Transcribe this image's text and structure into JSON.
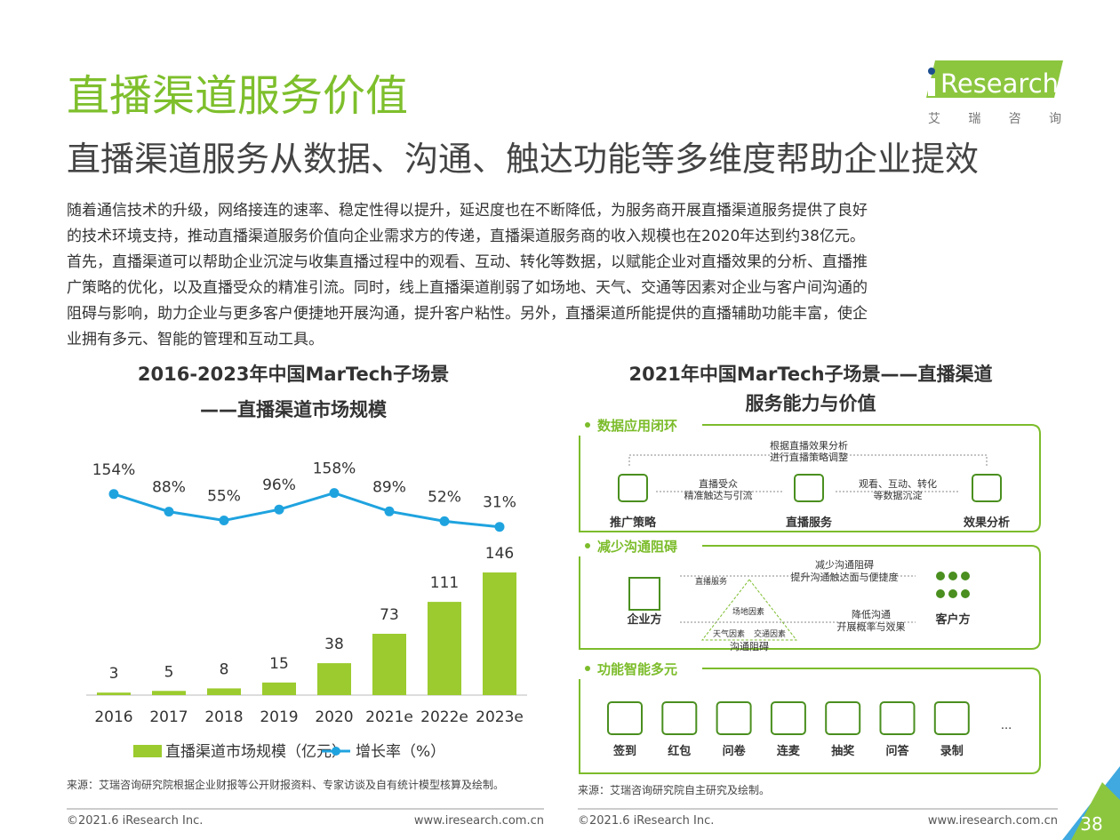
{
  "header": {
    "title": "直播渠道服务价值",
    "subtitle": "直播渠道服务从数据、沟通、触达功能等多维度帮助企业提效",
    "logo": "Research",
    "logo_cn": "艾 瑞 咨 询"
  },
  "body": [
    "随着通信技术的升级，网络接连的速率、稳定性得以提升，延迟度也在不断降低，为服务商开展直播渠道服务提供了良好",
    "的技术环境支持，推动直播渠道服务价值向企业需求方的传递，直播渠道服务商的收入规模也在2020年达到约38亿元。",
    "首先，直播渠道可以帮助企业沉淀与收集直播过程中的观看、互动、转化等数据，以赋能企业对直播效果的分析、直播推",
    "广策略的优化，以及直播受众的精准引流。同时，线上直播渠道削弱了如场地、天气、交通等因素对企业与客户间沟通的",
    "阻碍与影响，助力企业与更多客户便捷地开展沟通，提升客户粘性。另外，直播渠道所能提供的直播辅助功能丰富，使企",
    "业拥有多元、智能的管理和互动工具。"
  ],
  "chart_data": {
    "type": "bar",
    "title": [
      "2016-2023年中国MarTech子场景",
      "——直播渠道市场规模"
    ],
    "categories": [
      "2016",
      "2017",
      "2018",
      "2019",
      "2020",
      "2021e",
      "2022e",
      "2023e"
    ],
    "series": [
      {
        "name": "直播渠道市场规模（亿元）",
        "color": "#9bcb2e",
        "values": [
          3,
          5,
          8,
          15,
          38,
          73,
          111,
          146
        ]
      },
      {
        "name": "增长率（%）",
        "color": "#1fa3df",
        "type": "line",
        "values": [
          154,
          88,
          55,
          96,
          158,
          89,
          52,
          31
        ],
        "value_labels": [
          "154%",
          "88%",
          "55%",
          "96%",
          "158%",
          "89%",
          "52%",
          "31%"
        ]
      }
    ],
    "source": "来源：艾瑞咨询研究院根据企业财报等公开财报资料、专家访谈及自有统计模型核算及绘制。"
  },
  "diagram": {
    "title": [
      "2021年中国MarTech子场景——直播渠道",
      "服务能力与价值"
    ],
    "sections": [
      {
        "label": "数据应用闭环",
        "texts": [
          "推广策略",
          "直播服务",
          "效果分析",
          "根据直播效果分析",
          "进行直播策略调整",
          "直播受众",
          "精准触达与引流",
          "观看、互动、转化",
          "等数据沉淀"
        ]
      },
      {
        "label": "减少沟通阻碍",
        "texts": [
          "企业方",
          "客户方",
          "直播服务",
          "减少沟通阻碍",
          "提升沟通触达面与便捷度",
          "场地因素",
          "天气因素",
          "交通因素",
          "沟通阻碍",
          "降低沟通",
          "开展概率与效果"
        ]
      },
      {
        "label": "功能智能多元",
        "texts": [
          "签到",
          "红包",
          "问卷",
          "连麦",
          "抽奖",
          "问答",
          "录制",
          "..."
        ]
      }
    ],
    "source": "来源：艾瑞咨询研究院自主研究及绘制。"
  },
  "footer": {
    "copyright": [
      "©2021.6 iResearch Inc.",
      "©2021.6 iResearch Inc."
    ],
    "url": [
      "www.iresearch.com.cn",
      "www.iresearch.com.cn"
    ],
    "page": "38"
  }
}
